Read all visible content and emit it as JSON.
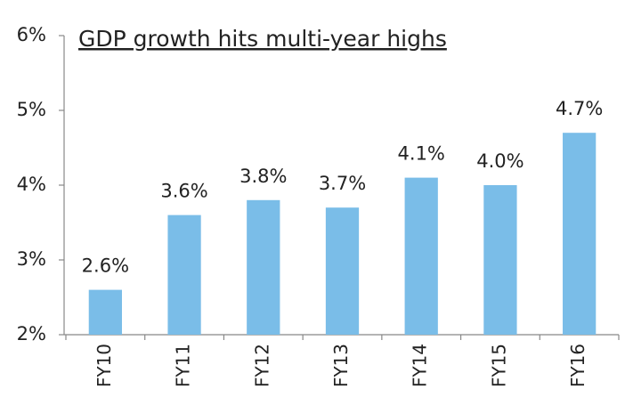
{
  "chart_data": {
    "type": "bar",
    "title": "GDP growth hits multi-year highs",
    "categories": [
      "FY10",
      "FY11",
      "FY12",
      "FY13",
      "FY14",
      "FY15",
      "FY16"
    ],
    "values": [
      2.6,
      3.6,
      3.8,
      3.7,
      4.1,
      4.0,
      4.7
    ],
    "value_labels": [
      "2.6%",
      "3.6%",
      "3.8%",
      "3.7%",
      "4.1%",
      "4.0%",
      "4.7%"
    ],
    "color": "#7abde8",
    "ylim": [
      2,
      6
    ],
    "yticks": [
      {
        "value": 2,
        "label": "2%"
      },
      {
        "value": 3,
        "label": "3%"
      },
      {
        "value": 4,
        "label": "4%"
      },
      {
        "value": 5,
        "label": "5%"
      },
      {
        "value": 6,
        "label": "6%"
      }
    ],
    "grid": false
  }
}
